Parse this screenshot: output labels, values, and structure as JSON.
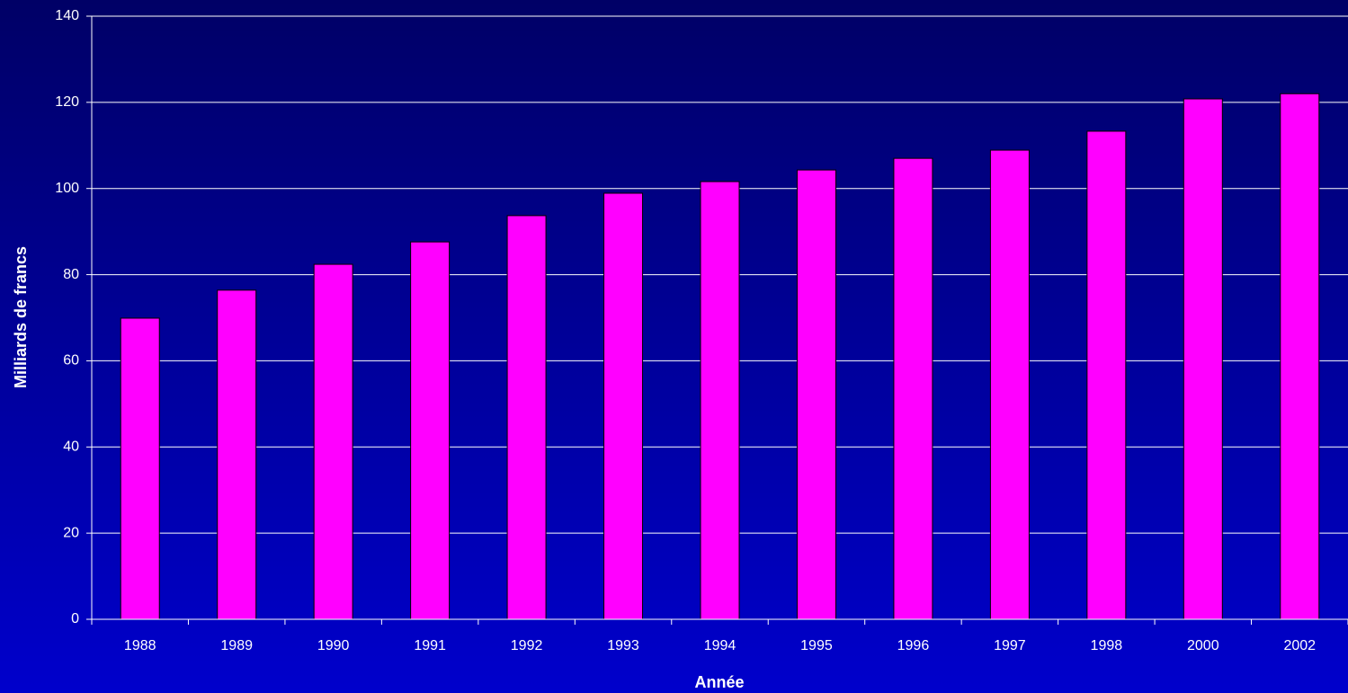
{
  "chart_data": {
    "type": "bar",
    "x_label": "Année",
    "y_label": "Milliards de francs",
    "categories": [
      "1988",
      "1989",
      "1990",
      "1991",
      "1992",
      "1993",
      "1994",
      "1995",
      "1996",
      "1997",
      "1998",
      "2000",
      "2002"
    ],
    "values": [
      69.9,
      76.4,
      82.4,
      87.6,
      93.7,
      98.9,
      101.6,
      104.3,
      107.0,
      108.9,
      113.3,
      120.8,
      122.0
    ],
    "color": "#ff00ff",
    "ylim": [
      0,
      140
    ],
    "yticks": [
      0,
      20,
      40,
      60,
      80,
      100,
      120,
      140
    ],
    "grid": true
  }
}
